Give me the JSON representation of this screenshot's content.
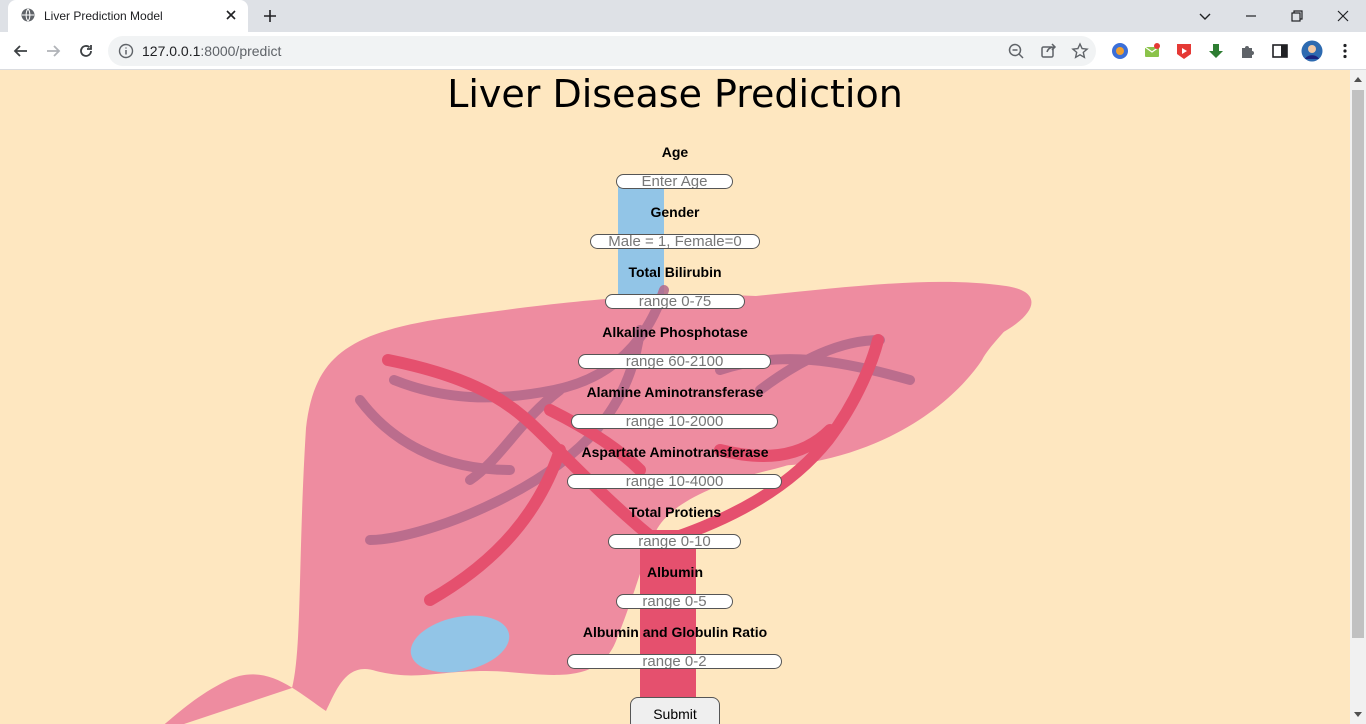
{
  "browser": {
    "tab_title": "Liver Prediction Model",
    "url_host": "127.0.0.1",
    "url_rest": ":8000/predict"
  },
  "page": {
    "title": "Liver Disease Prediction",
    "submit_label": "Submit",
    "fields": [
      {
        "label": "Age",
        "placeholder": "Enter Age"
      },
      {
        "label": "Gender",
        "placeholder": "Male = 1, Female=0"
      },
      {
        "label": "Total Bilirubin",
        "placeholder": "range 0-75"
      },
      {
        "label": "Alkaline Phosphotase",
        "placeholder": "range 60-2100"
      },
      {
        "label": "Alamine Aminotransferase",
        "placeholder": "range 10-2000"
      },
      {
        "label": "Aspartate Aminotransferase",
        "placeholder": "range 10-4000"
      },
      {
        "label": "Total Protiens",
        "placeholder": "range 0-10"
      },
      {
        "label": "Albumin",
        "placeholder": "range 0-5"
      },
      {
        "label": "Albumin and Globulin Ratio",
        "placeholder": "range 0-2"
      }
    ]
  },
  "colors": {
    "page_bg": "#fee7c0",
    "liver": "#ee8ca0",
    "vessel_red": "#e5506e",
    "vessel_purple": "#b2678a",
    "bile_blue": "#92c5e7"
  }
}
